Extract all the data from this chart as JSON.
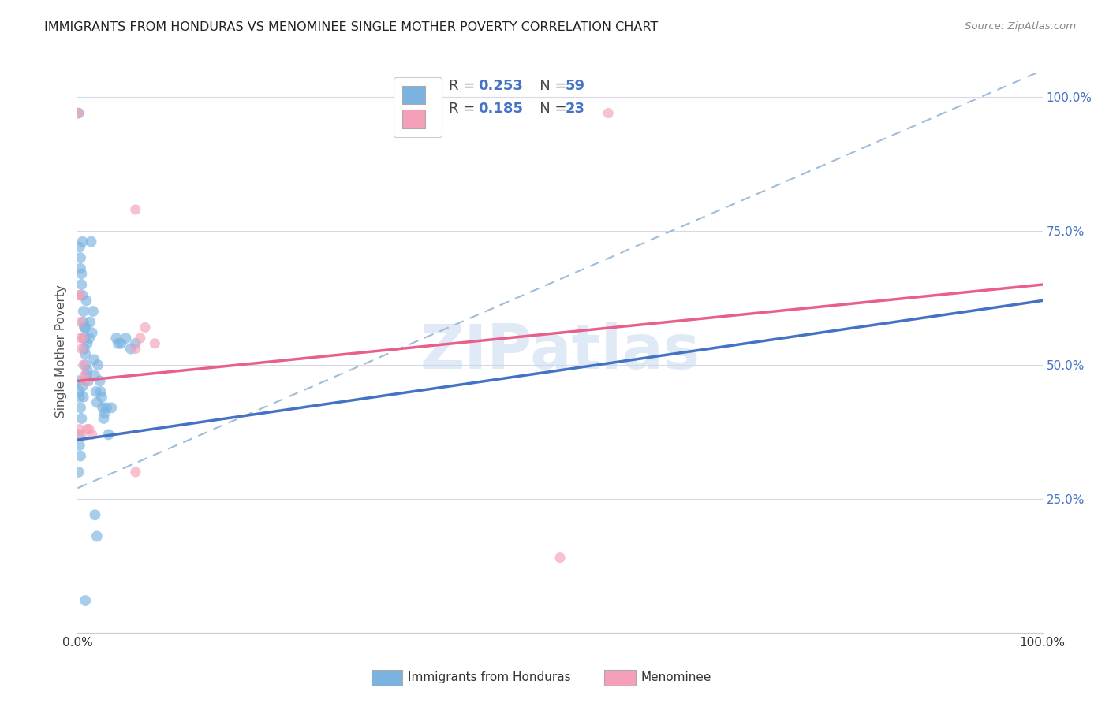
{
  "title": "IMMIGRANTS FROM HONDURAS VS MENOMINEE SINGLE MOTHER POVERTY CORRELATION CHART",
  "source": "Source: ZipAtlas.com",
  "ylabel": "Single Mother Poverty",
  "legend_blue_r": "0.253",
  "legend_blue_n": "59",
  "legend_pink_r": "0.185",
  "legend_pink_n": "23",
  "legend_label1": "Immigrants from Honduras",
  "legend_label2": "Menominee",
  "blue_color": "#7ab3e0",
  "pink_color": "#f4a0b8",
  "trendline_blue": "#4472c4",
  "trendline_pink": "#e8608a",
  "trendline_dashed_color": "#a0bcd8",
  "watermark": "ZIPatlas",
  "r_n_color": "#4472c4",
  "r_label_color": "#444444",
  "blue_scatter": [
    [
      0.001,
      0.97
    ],
    [
      0.002,
      0.72
    ],
    [
      0.003,
      0.7
    ],
    [
      0.003,
      0.68
    ],
    [
      0.004,
      0.67
    ],
    [
      0.004,
      0.65
    ],
    [
      0.005,
      0.73
    ],
    [
      0.005,
      0.63
    ],
    [
      0.006,
      0.6
    ],
    [
      0.006,
      0.58
    ],
    [
      0.007,
      0.57
    ],
    [
      0.007,
      0.55
    ],
    [
      0.007,
      0.53
    ],
    [
      0.008,
      0.57
    ],
    [
      0.008,
      0.52
    ],
    [
      0.008,
      0.5
    ],
    [
      0.009,
      0.48
    ],
    [
      0.009,
      0.62
    ],
    [
      0.01,
      0.54
    ],
    [
      0.01,
      0.49
    ],
    [
      0.011,
      0.47
    ],
    [
      0.012,
      0.55
    ],
    [
      0.013,
      0.58
    ],
    [
      0.014,
      0.73
    ],
    [
      0.015,
      0.56
    ],
    [
      0.016,
      0.6
    ],
    [
      0.017,
      0.51
    ],
    [
      0.018,
      0.48
    ],
    [
      0.019,
      0.45
    ],
    [
      0.02,
      0.43
    ],
    [
      0.021,
      0.5
    ],
    [
      0.023,
      0.47
    ],
    [
      0.024,
      0.45
    ],
    [
      0.025,
      0.44
    ],
    [
      0.026,
      0.42
    ],
    [
      0.027,
      0.4
    ],
    [
      0.028,
      0.41
    ],
    [
      0.03,
      0.42
    ],
    [
      0.032,
      0.37
    ],
    [
      0.035,
      0.42
    ],
    [
      0.04,
      0.55
    ],
    [
      0.042,
      0.54
    ],
    [
      0.045,
      0.54
    ],
    [
      0.05,
      0.55
    ],
    [
      0.055,
      0.53
    ],
    [
      0.06,
      0.54
    ],
    [
      0.001,
      0.47
    ],
    [
      0.002,
      0.45
    ],
    [
      0.002,
      0.44
    ],
    [
      0.003,
      0.42
    ],
    [
      0.004,
      0.4
    ],
    [
      0.001,
      0.37
    ],
    [
      0.002,
      0.35
    ],
    [
      0.003,
      0.33
    ],
    [
      0.018,
      0.22
    ],
    [
      0.02,
      0.18
    ],
    [
      0.008,
      0.06
    ],
    [
      0.001,
      0.3
    ],
    [
      0.005,
      0.46
    ],
    [
      0.006,
      0.44
    ]
  ],
  "pink_scatter": [
    [
      0.001,
      0.97
    ],
    [
      0.002,
      0.63
    ],
    [
      0.003,
      0.58
    ],
    [
      0.004,
      0.53
    ],
    [
      0.005,
      0.55
    ],
    [
      0.006,
      0.5
    ],
    [
      0.007,
      0.48
    ],
    [
      0.008,
      0.47
    ],
    [
      0.01,
      0.38
    ],
    [
      0.012,
      0.38
    ],
    [
      0.015,
      0.37
    ],
    [
      0.06,
      0.53
    ],
    [
      0.065,
      0.55
    ],
    [
      0.07,
      0.57
    ],
    [
      0.08,
      0.54
    ],
    [
      0.06,
      0.3
    ],
    [
      0.06,
      0.79
    ],
    [
      0.5,
      0.14
    ],
    [
      0.55,
      0.97
    ],
    [
      0.001,
      0.63
    ],
    [
      0.003,
      0.55
    ],
    [
      0.002,
      0.38
    ],
    [
      0.004,
      0.37
    ]
  ],
  "blue_trend_x0": 0.0,
  "blue_trend_x1": 1.0,
  "blue_trend_y0": 0.36,
  "blue_trend_y1": 0.62,
  "pink_trend_x0": 0.0,
  "pink_trend_x1": 1.0,
  "pink_trend_y0": 0.47,
  "pink_trend_y1": 0.65,
  "dash_trend_x0": 0.0,
  "dash_trend_x1": 1.0,
  "dash_trend_y0": 0.27,
  "dash_trend_y1": 1.05,
  "xlim": [
    0.0,
    1.0
  ],
  "ylim": [
    0.0,
    1.05
  ],
  "xticks": [
    0.0,
    0.1,
    0.2,
    0.3,
    0.4,
    0.5,
    0.6,
    0.7,
    0.8,
    0.9,
    1.0
  ],
  "yticks": [
    0.0,
    0.25,
    0.5,
    0.75,
    1.0
  ],
  "grid_color": "#d8d8e8",
  "marker_size_blue": 100,
  "marker_size_pink": 90,
  "marker_alpha": 0.65
}
